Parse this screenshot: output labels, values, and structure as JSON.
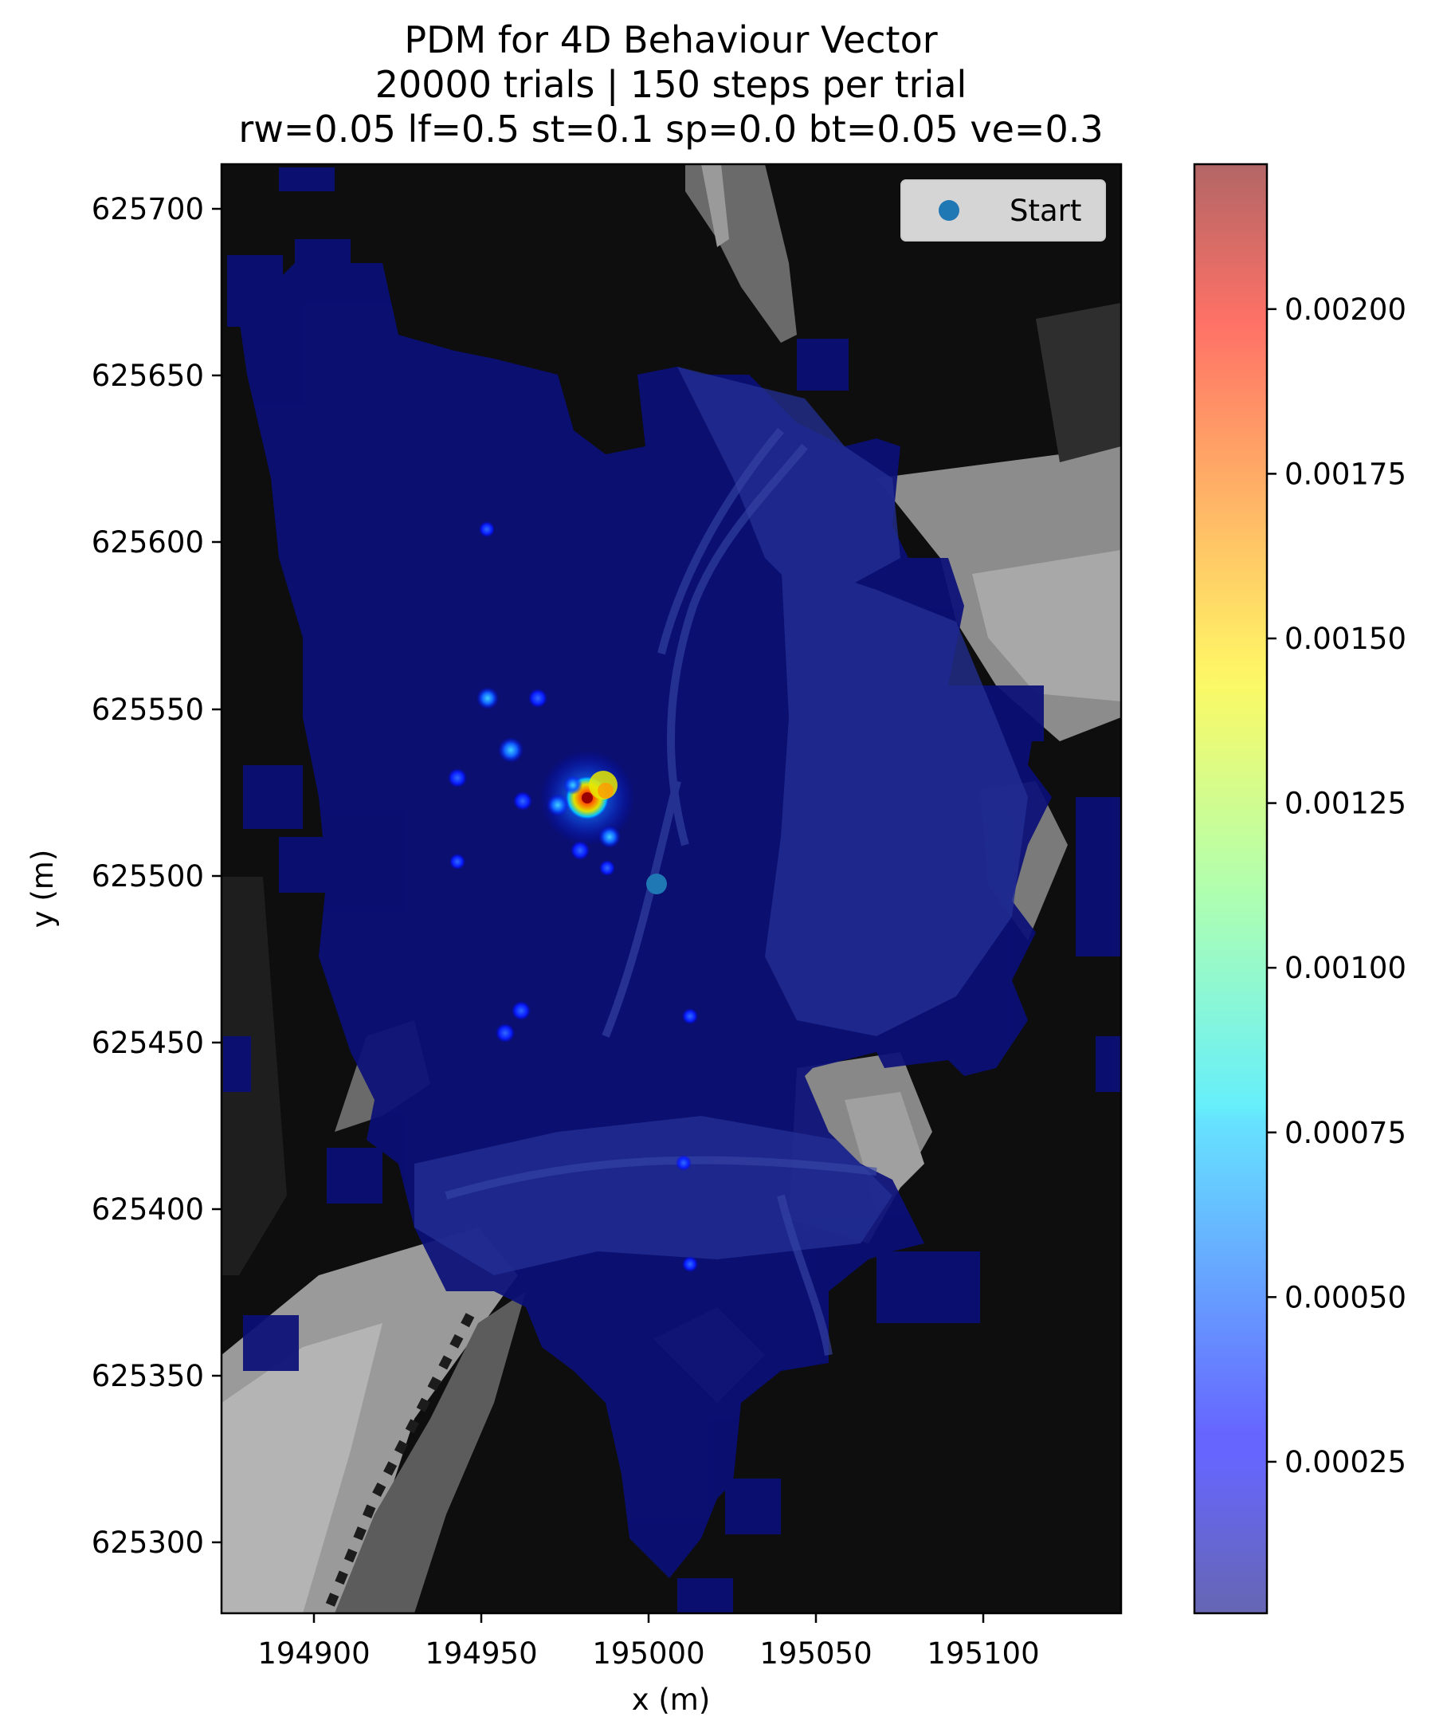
{
  "chart_data": {
    "type": "heatmap",
    "title": [
      "PDM for 4D Behaviour Vector",
      "20000 trials | 150 steps per trial",
      "rw=0.05 lf=0.5 st=0.1 sp=0.0 bt=0.05 ve=0.3"
    ],
    "xlabel": "x (m)",
    "ylabel": "y (m)",
    "xlim": [
      194872,
      195142
    ],
    "ylim": [
      625277,
      625712
    ],
    "xticks": [
      194900,
      194950,
      195000,
      195050,
      195100
    ],
    "yticks": [
      625300,
      625350,
      625400,
      625450,
      625500,
      625550,
      625600,
      625650,
      625700
    ],
    "colorbar": {
      "range": [
        2e-05,
        0.00222
      ],
      "ticks": [
        0.00025,
        0.0005,
        0.00075,
        0.001,
        0.00125,
        0.0015,
        0.00175,
        0.002
      ],
      "tick_labels": [
        "0.00025",
        "0.00050",
        "0.00075",
        "0.00100",
        "0.00125",
        "0.00150",
        "0.00175",
        "0.00200"
      ],
      "colormap": "jet",
      "alpha": 0.6
    },
    "background": "grayscale elevation raster",
    "start": {
      "x": 195002,
      "y": 625498,
      "label": "Start",
      "color": "#1f77b4"
    },
    "legend": {
      "position": "top-right",
      "entries": [
        "Start"
      ]
    },
    "hotspots": [
      {
        "x": 194984,
        "y": 625522,
        "value": 0.0022
      },
      {
        "x": 194988,
        "y": 625526,
        "value": 0.0015
      },
      {
        "x": 194980,
        "y": 625528,
        "value": 0.0006
      },
      {
        "x": 194990,
        "y": 625515,
        "value": 0.0005
      },
      {
        "x": 194977,
        "y": 625520,
        "value": 0.00045
      },
      {
        "x": 194958,
        "y": 625537,
        "value": 0.0004
      },
      {
        "x": 194953,
        "y": 625553,
        "value": 0.00035
      },
      {
        "x": 194969,
        "y": 625553,
        "value": 0.0003
      },
      {
        "x": 194968,
        "y": 625521,
        "value": 0.0003
      },
      {
        "x": 194985,
        "y": 625505,
        "value": 0.0003
      },
      {
        "x": 194942,
        "y": 625528,
        "value": 0.00028
      },
      {
        "x": 194962,
        "y": 625459,
        "value": 0.00027
      },
      {
        "x": 194957,
        "y": 625452,
        "value": 0.00027
      },
      {
        "x": 194952,
        "y": 625604,
        "value": 0.00022
      },
      {
        "x": 194942,
        "y": 625502,
        "value": 0.00022
      },
      {
        "x": 195012,
        "y": 625457,
        "value": 0.00022
      },
      {
        "x": 195010,
        "y": 625413,
        "value": 0.0002
      },
      {
        "x": 195013,
        "y": 625383,
        "value": 0.0002
      },
      {
        "x": 194988,
        "y": 625496,
        "value": 0.0002
      }
    ]
  }
}
